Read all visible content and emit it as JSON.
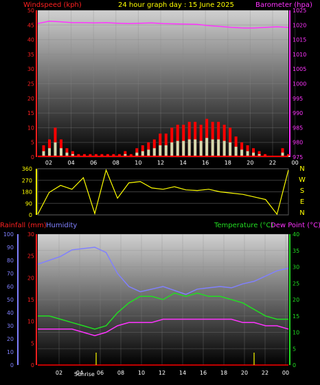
{
  "header": {
    "left_title": "Windspeed (kph)",
    "center_title": "24 hour graph day : 15 June 2025",
    "right_title": "Barometer (hpa)"
  },
  "lower_header": {
    "rain_label": "Rainfall (mm)",
    "humidity_label": "Humidity",
    "temp_label": "Temperature (°C)",
    "dew_label": "Dew Point (°C)"
  },
  "sunrise_label": "Sunrise",
  "compass": [
    "N",
    "W",
    "S",
    "E",
    "N"
  ],
  "colors": {
    "wind_gust": "#ff0000",
    "wind_avg": "#00cc00",
    "wind_fill": "#ccffcc",
    "barometer": "#ff33ff",
    "direction": "#ffff00",
    "rainfall": "#ff0000",
    "humidity": "#8080ff",
    "temperature": "#22dd22",
    "dewpoint": "#ff33ff",
    "rain_axis": "#ff2020",
    "temp_axis": "#22dd22"
  },
  "chart_data": [
    {
      "type": "line",
      "name": "wind_barometer",
      "x_ticks": [
        "02",
        "04",
        "06",
        "08",
        "10",
        "12",
        "14",
        "16",
        "18",
        "20",
        "22",
        "00"
      ],
      "y_left_ticks": [
        "0",
        "5",
        "10",
        "15",
        "20",
        "25",
        "30",
        "35",
        "40",
        "45",
        "50"
      ],
      "y_left_range": [
        0,
        50
      ],
      "y_right_ticks": [
        "975",
        "980",
        "985",
        "990",
        "995",
        "1000",
        "1005",
        "1010",
        "1015",
        "1020",
        "1025"
      ],
      "y_right_range": [
        975,
        1025
      ],
      "series": [
        {
          "name": "Windspeed",
          "values": [
            0,
            4,
            6,
            10,
            6,
            3,
            2,
            1,
            1,
            1,
            1,
            1,
            1,
            1,
            1,
            2,
            1,
            3,
            4,
            5,
            6,
            8,
            8,
            10,
            11,
            11,
            12,
            12,
            11,
            13,
            12,
            12,
            11,
            10,
            7,
            5,
            4,
            3,
            2,
            1,
            0,
            0,
            3,
            1
          ]
        },
        {
          "name": "Barometer",
          "values": [
            1020.5,
            1021.3,
            1021.1,
            1020.8,
            1020.8,
            1020.7,
            1020.8,
            1020.6,
            1020.5,
            1020.6,
            1020.7,
            1020.5,
            1020.4,
            1020.3,
            1020.2,
            1019.8,
            1019.5,
            1019.2,
            1019,
            1019,
            1019.2,
            1019.4,
            1019.2
          ]
        }
      ]
    },
    {
      "type": "line",
      "name": "wind_direction",
      "y_ticks": [
        "0",
        "90",
        "180",
        "270",
        "360"
      ],
      "y_range": [
        0,
        360
      ],
      "series": [
        {
          "name": "Direction",
          "values": [
            5,
            175,
            230,
            200,
            290,
            10,
            350,
            130,
            250,
            260,
            210,
            200,
            220,
            195,
            190,
            200,
            180,
            170,
            160,
            140,
            120,
            5,
            350
          ]
        }
      ]
    },
    {
      "type": "line",
      "name": "rain_humidity_temperature",
      "x_ticks": [
        "02",
        "04",
        "06",
        "08",
        "10",
        "12",
        "14",
        "16",
        "18",
        "20",
        "22",
        "00"
      ],
      "y_left_rain_ticks": [
        "0",
        "5",
        "10",
        "15",
        "20",
        "25",
        "30"
      ],
      "y_left_rain_range": [
        0,
        30
      ],
      "y_left_humidity_ticks": [
        "0",
        "10",
        "20",
        "30",
        "40",
        "50",
        "60",
        "70",
        "80",
        "90",
        "100"
      ],
      "y_left_humidity_range": [
        0,
        100
      ],
      "y_right_ticks": [
        "0",
        "5",
        "10",
        "15",
        "20",
        "25",
        "30",
        "35",
        "40"
      ],
      "y_right_range": [
        0,
        40
      ],
      "series": [
        {
          "name": "Humidity",
          "values": [
            77,
            80,
            83,
            88,
            89,
            90,
            86,
            70,
            60,
            56,
            58,
            60,
            57,
            54,
            58,
            59,
            60,
            59,
            62,
            64,
            68,
            72,
            74
          ]
        },
        {
          "name": "Temperature",
          "values": [
            15,
            15,
            14,
            13,
            12,
            11,
            12,
            16,
            19,
            21,
            21,
            20,
            22,
            21,
            22,
            21,
            21,
            20,
            19,
            17,
            15,
            14,
            14
          ]
        },
        {
          "name": "Dew Point",
          "values": [
            11,
            11,
            11,
            11,
            10,
            9,
            10,
            12,
            13,
            13,
            13,
            14,
            14,
            14,
            14,
            14,
            14,
            14,
            13,
            13,
            12,
            12,
            11
          ]
        },
        {
          "name": "Rainfall",
          "values": [
            0,
            0,
            0,
            0,
            0,
            0,
            0,
            0,
            0,
            0,
            0,
            0,
            0,
            0,
            0,
            0,
            0,
            0,
            0,
            0,
            0,
            0,
            0
          ]
        }
      ]
    }
  ]
}
